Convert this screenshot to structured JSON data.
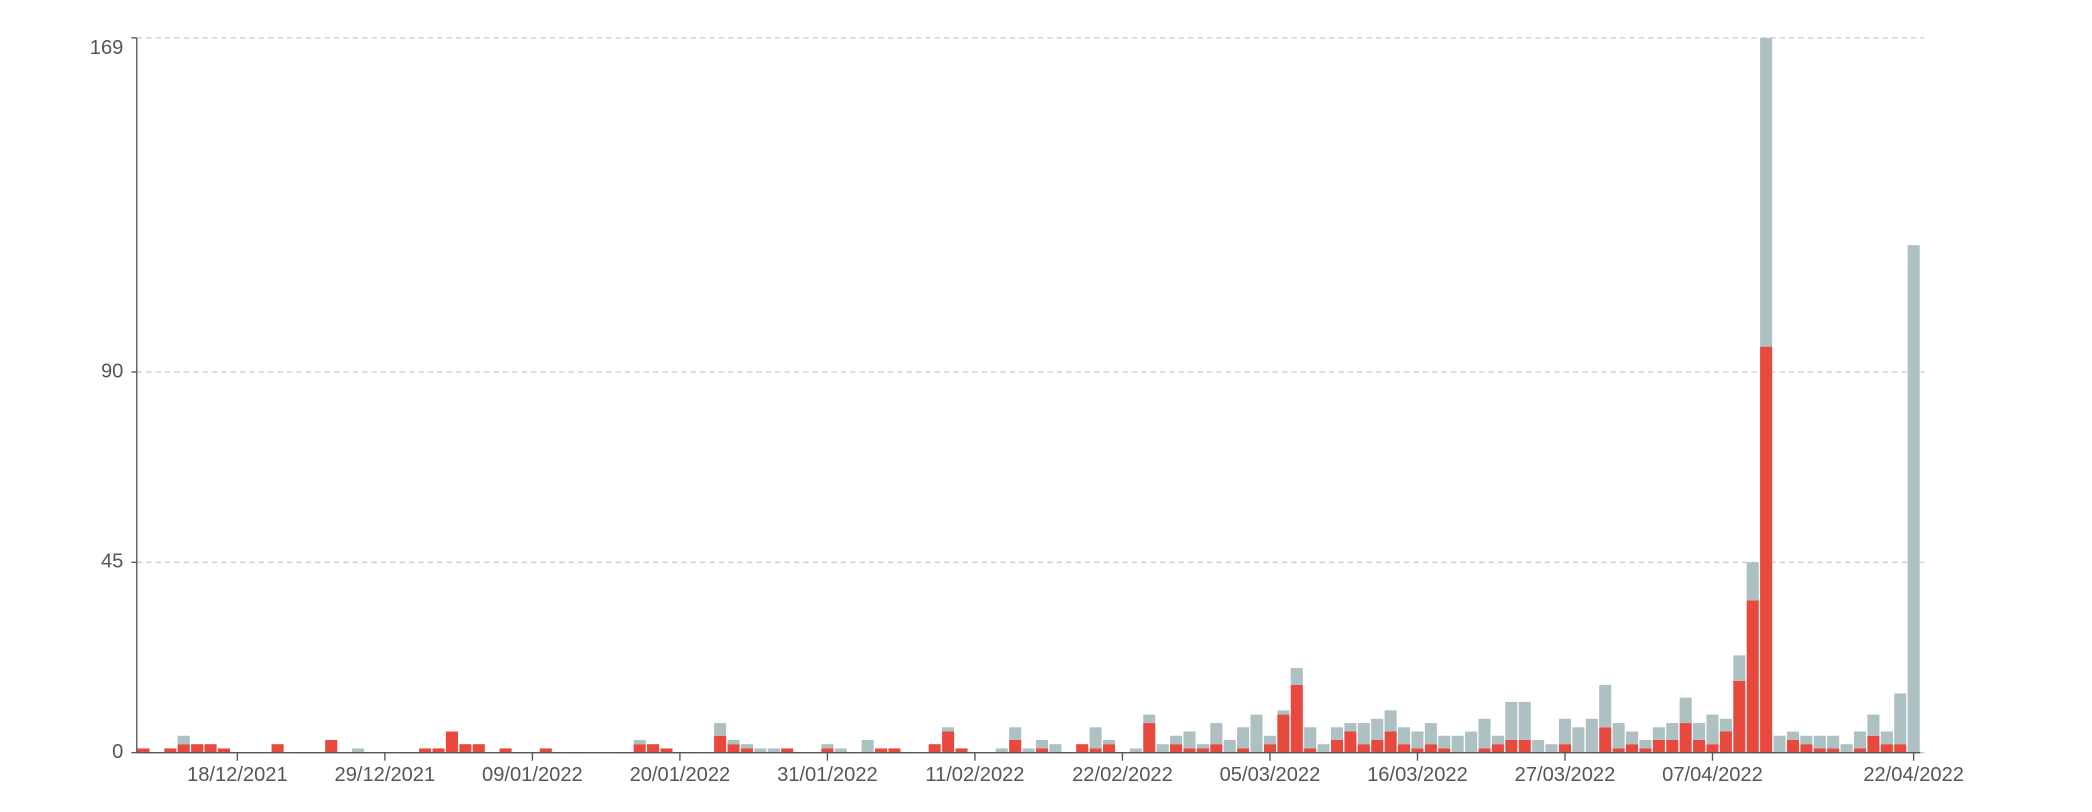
{
  "chart_data": {
    "type": "stacked-bar",
    "categories": [
      null,
      null,
      null,
      null,
      null,
      null,
      null,
      "18/12/2021",
      null,
      null,
      null,
      null,
      null,
      null,
      null,
      null,
      null,
      null,
      "29/12/2021",
      null,
      null,
      null,
      null,
      null,
      null,
      null,
      null,
      null,
      null,
      "09/01/2022",
      null,
      null,
      null,
      null,
      null,
      null,
      null,
      null,
      null,
      null,
      "20/01/2022",
      null,
      null,
      null,
      null,
      null,
      null,
      null,
      null,
      null,
      null,
      "31/01/2022",
      null,
      null,
      null,
      null,
      null,
      null,
      null,
      null,
      null,
      null,
      "11/02/2022",
      null,
      null,
      null,
      null,
      null,
      null,
      null,
      null,
      null,
      null,
      "22/02/2022",
      null,
      null,
      null,
      null,
      null,
      null,
      null,
      null,
      null,
      null,
      "05/03/2022",
      null,
      null,
      null,
      null,
      null,
      null,
      null,
      null,
      null,
      null,
      "16/03/2022",
      null,
      null,
      null,
      null,
      null,
      null,
      null,
      null,
      null,
      null,
      "27/03/2022",
      null,
      null,
      null,
      null,
      null,
      null,
      null,
      null,
      null,
      null,
      "07/04/2022",
      null,
      null,
      null,
      null,
      null,
      null,
      null,
      null,
      null,
      null,
      null,
      null,
      null,
      null,
      "22/04/2022"
    ],
    "series": [
      {
        "color": "#e8493f",
        "values": [
          1,
          0,
          1,
          2,
          2,
          2,
          1,
          0,
          0,
          0,
          2,
          0,
          0,
          0,
          3,
          0,
          0,
          0,
          0,
          0,
          0,
          1,
          1,
          5,
          2,
          2,
          0,
          1,
          0,
          0,
          1,
          0,
          0,
          0,
          0,
          0,
          0,
          2,
          2,
          1,
          0,
          0,
          0,
          4,
          2,
          1,
          0,
          0,
          1,
          0,
          0,
          1,
          0,
          0,
          0,
          1,
          1,
          0,
          0,
          2,
          5,
          1,
          0,
          0,
          0,
          3,
          0,
          1,
          0,
          0,
          2,
          1,
          2,
          0,
          0,
          7,
          0,
          2,
          1,
          1,
          2,
          0,
          1,
          0,
          2,
          9,
          16,
          1,
          0,
          3,
          5,
          2,
          3,
          5,
          2,
          1,
          2,
          1,
          0,
          0,
          1,
          2,
          3,
          3,
          0,
          0,
          2,
          0,
          0,
          6,
          1,
          2,
          1,
          3,
          3,
          7,
          3,
          2,
          5,
          17,
          36,
          96,
          0,
          3,
          2,
          1,
          1,
          0,
          1,
          4,
          2,
          2,
          0
        ]
      },
      {
        "color": "#adc0c2",
        "values": [
          0,
          0,
          0,
          2,
          0,
          0,
          0,
          0,
          0,
          0,
          0,
          0,
          0,
          0,
          0,
          0,
          1,
          0,
          0,
          0,
          0,
          0,
          0,
          0,
          0,
          0,
          0,
          0,
          0,
          0,
          0,
          0,
          0,
          0,
          0,
          0,
          0,
          1,
          0,
          0,
          0,
          0,
          0,
          3,
          1,
          1,
          1,
          1,
          0,
          0,
          0,
          1,
          1,
          0,
          3,
          0,
          0,
          0,
          0,
          0,
          1,
          0,
          0,
          0,
          1,
          3,
          1,
          2,
          2,
          0,
          0,
          5,
          1,
          0,
          1,
          2,
          2,
          2,
          4,
          1,
          5,
          3,
          5,
          9,
          2,
          1,
          4,
          5,
          2,
          3,
          2,
          5,
          5,
          5,
          4,
          4,
          5,
          3,
          4,
          5,
          7,
          2,
          9,
          9,
          3,
          2,
          6,
          6,
          8,
          10,
          6,
          3,
          2,
          3,
          4,
          6,
          4,
          7,
          3,
          6,
          9,
          73,
          4,
          2,
          2,
          3,
          3,
          2,
          4,
          5,
          3,
          12,
          120
        ]
      }
    ],
    "ylim": [
      0,
      169
    ],
    "yticks": [
      0,
      45,
      90,
      169
    ],
    "grid": true
  }
}
